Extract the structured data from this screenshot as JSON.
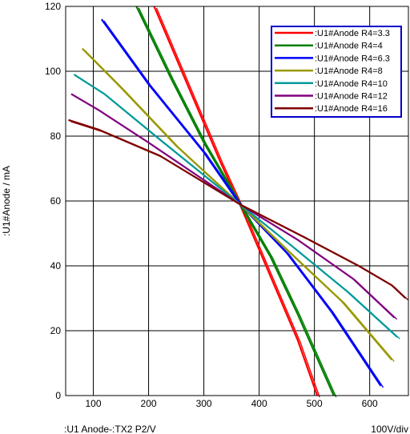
{
  "chart_data": {
    "type": "line",
    "ylabel": ":U1#Anode / mA",
    "xlabel": ":U1  Anode-:TX2  P2/V",
    "xscale_note": "100V/div",
    "xlim": [
      50,
      670
    ],
    "ylim": [
      0,
      120
    ],
    "xticks": [
      100,
      200,
      300,
      400,
      500,
      600
    ],
    "yticks": [
      0,
      20,
      40,
      60,
      80,
      100,
      120
    ],
    "grid": true,
    "legend_position": "top-right",
    "series": [
      {
        "name": ":U1#Anode R4=3.3",
        "color": "#ff0000",
        "x": [
          210,
          270,
          330,
          365,
          400,
          440,
          470,
          505
        ],
        "y": [
          120,
          96,
          72,
          59,
          45,
          29,
          17,
          0
        ]
      },
      {
        "name": ":U1#Anode R4=4",
        "color": "#008000",
        "x": [
          178,
          240,
          300,
          365,
          420,
          470,
          535
        ],
        "y": [
          120,
          98,
          78,
          59,
          43,
          25,
          0
        ]
      },
      {
        "name": ":U1#Anode R4=6.3",
        "color": "#0000ff",
        "x": [
          115,
          200,
          300,
          365,
          450,
          530,
          620
        ],
        "y": [
          116,
          96,
          75,
          59,
          44,
          26,
          3
        ]
      },
      {
        "name": ":U1#Anode R4=8",
        "color": "#999900",
        "x": [
          80,
          150,
          250,
          365,
          450,
          550,
          640
        ],
        "y": [
          107,
          95,
          77,
          59,
          45,
          29,
          11
        ]
      },
      {
        "name": ":U1#Anode R4=10",
        "color": "#009999",
        "x": [
          65,
          120,
          220,
          365,
          460,
          560,
          650
        ],
        "y": [
          99,
          93,
          79,
          59,
          46,
          32,
          18
        ]
      },
      {
        "name": ":U1#Anode R4=12",
        "color": "#800080",
        "x": [
          60,
          110,
          200,
          365,
          470,
          570,
          645
        ],
        "y": [
          93,
          88,
          78,
          59,
          48,
          36,
          24
        ]
      },
      {
        "name": ":U1#Anode R4=16",
        "color": "#800000",
        "x": [
          55,
          110,
          220,
          365,
          480,
          580,
          640,
          665
        ],
        "y": [
          85,
          82,
          74,
          59,
          49,
          40,
          34,
          30
        ]
      }
    ]
  }
}
